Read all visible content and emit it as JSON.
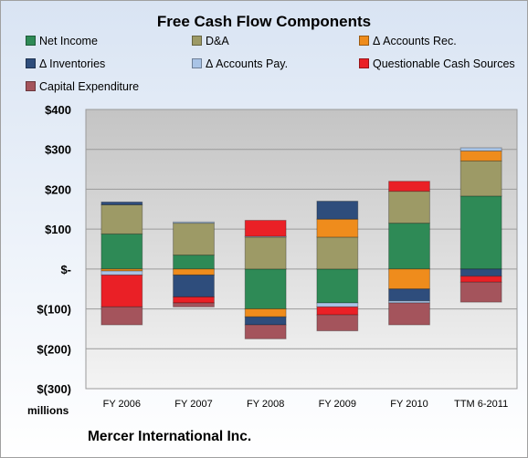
{
  "chart_data": {
    "type": "bar",
    "stacked": true,
    "title": "Free Cash Flow Components",
    "ylabel_units": "millions",
    "footer": "Mercer International Inc.",
    "categories": [
      "FY 2006",
      "FY 2007",
      "FY 2008",
      "FY 2009",
      "FY 2010",
      "TTM 6-2011"
    ],
    "ylim": [
      -300,
      400
    ],
    "yticks": [
      -300,
      -200,
      -100,
      0,
      100,
      200,
      300,
      400
    ],
    "ytick_labels": [
      "$(300)",
      "$(200)",
      "$(100)",
      "$-",
      "$100",
      "$200",
      "$300",
      "$400"
    ],
    "legend_position": "top",
    "series": [
      {
        "name": "Net Income",
        "color": "#2e8a56",
        "values": [
          88,
          35,
          -100,
          -85,
          115,
          183
        ]
      },
      {
        "name": "D&A",
        "color": "#9d9a66",
        "values": [
          73,
          80,
          80,
          80,
          80,
          88
        ]
      },
      {
        "name": "Δ Accounts Rec.",
        "color": "#ef8c1c",
        "values": [
          -5,
          -15,
          -20,
          45,
          -50,
          25
        ]
      },
      {
        "name": "Δ Inventories",
        "color": "#2e4d7c",
        "values": [
          7,
          -55,
          -20,
          45,
          -30,
          -18
        ]
      },
      {
        "name": "Δ Accounts Pay.",
        "color": "#a9c4e6",
        "values": [
          -10,
          3,
          2,
          -10,
          -5,
          8
        ]
      },
      {
        "name": "Questionable Cash Sources",
        "color": "#ea2026",
        "values": [
          -80,
          -15,
          40,
          -20,
          25,
          -15
        ]
      },
      {
        "name": "Capital Expenditure",
        "color": "#a4545c",
        "values": [
          -45,
          -10,
          -35,
          -40,
          -55,
          -50
        ]
      }
    ]
  }
}
